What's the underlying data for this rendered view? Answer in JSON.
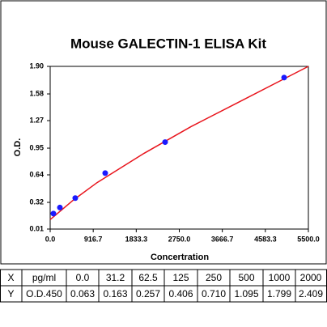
{
  "chart_data": {
    "type": "scatter",
    "title": "Mouse GALECTIN-1 ELISA Kit",
    "ylabel": "O.D.",
    "xlabel": "Concertration",
    "xlim": [
      0,
      5500
    ],
    "ylim": [
      0.01,
      1.9
    ],
    "xticks": [
      {
        "value": 0,
        "label": "0.0"
      },
      916.7,
      1833.3,
      {
        "value": 2750,
        "label": "2750.0"
      },
      3666.7,
      4583.3,
      {
        "value": 5500,
        "label": "5500.0"
      }
    ],
    "yticks": [
      0.01,
      0.32,
      0.64,
      0.95,
      1.27,
      1.58,
      {
        "value": 1.9,
        "label": "1.90"
      }
    ],
    "grid": false,
    "series": [
      {
        "type": "line",
        "color": "#e8141c",
        "x": [
          0,
          500,
          1000,
          2000,
          3000,
          4000,
          5000,
          5500
        ],
        "values": [
          0.12,
          0.35,
          0.55,
          0.89,
          1.2,
          1.48,
          1.76,
          1.9
        ]
      },
      {
        "type": "scatter",
        "color": "#1a1aff",
        "x": [
          69,
          207,
          534,
          1172,
          2448,
          4983
        ],
        "values": [
          0.19,
          0.26,
          0.37,
          0.66,
          1.02,
          1.77
        ]
      }
    ]
  },
  "table": {
    "rows": [
      [
        "X",
        "pg/ml",
        "0.0",
        "31.2",
        "62.5",
        "125",
        "250",
        "500",
        "1000",
        "2000"
      ],
      [
        "Y",
        "O.D.450",
        "0.063",
        "0.163",
        "0.257",
        "0.406",
        "0.710",
        "1.095",
        "1.799",
        "2.409"
      ]
    ]
  }
}
